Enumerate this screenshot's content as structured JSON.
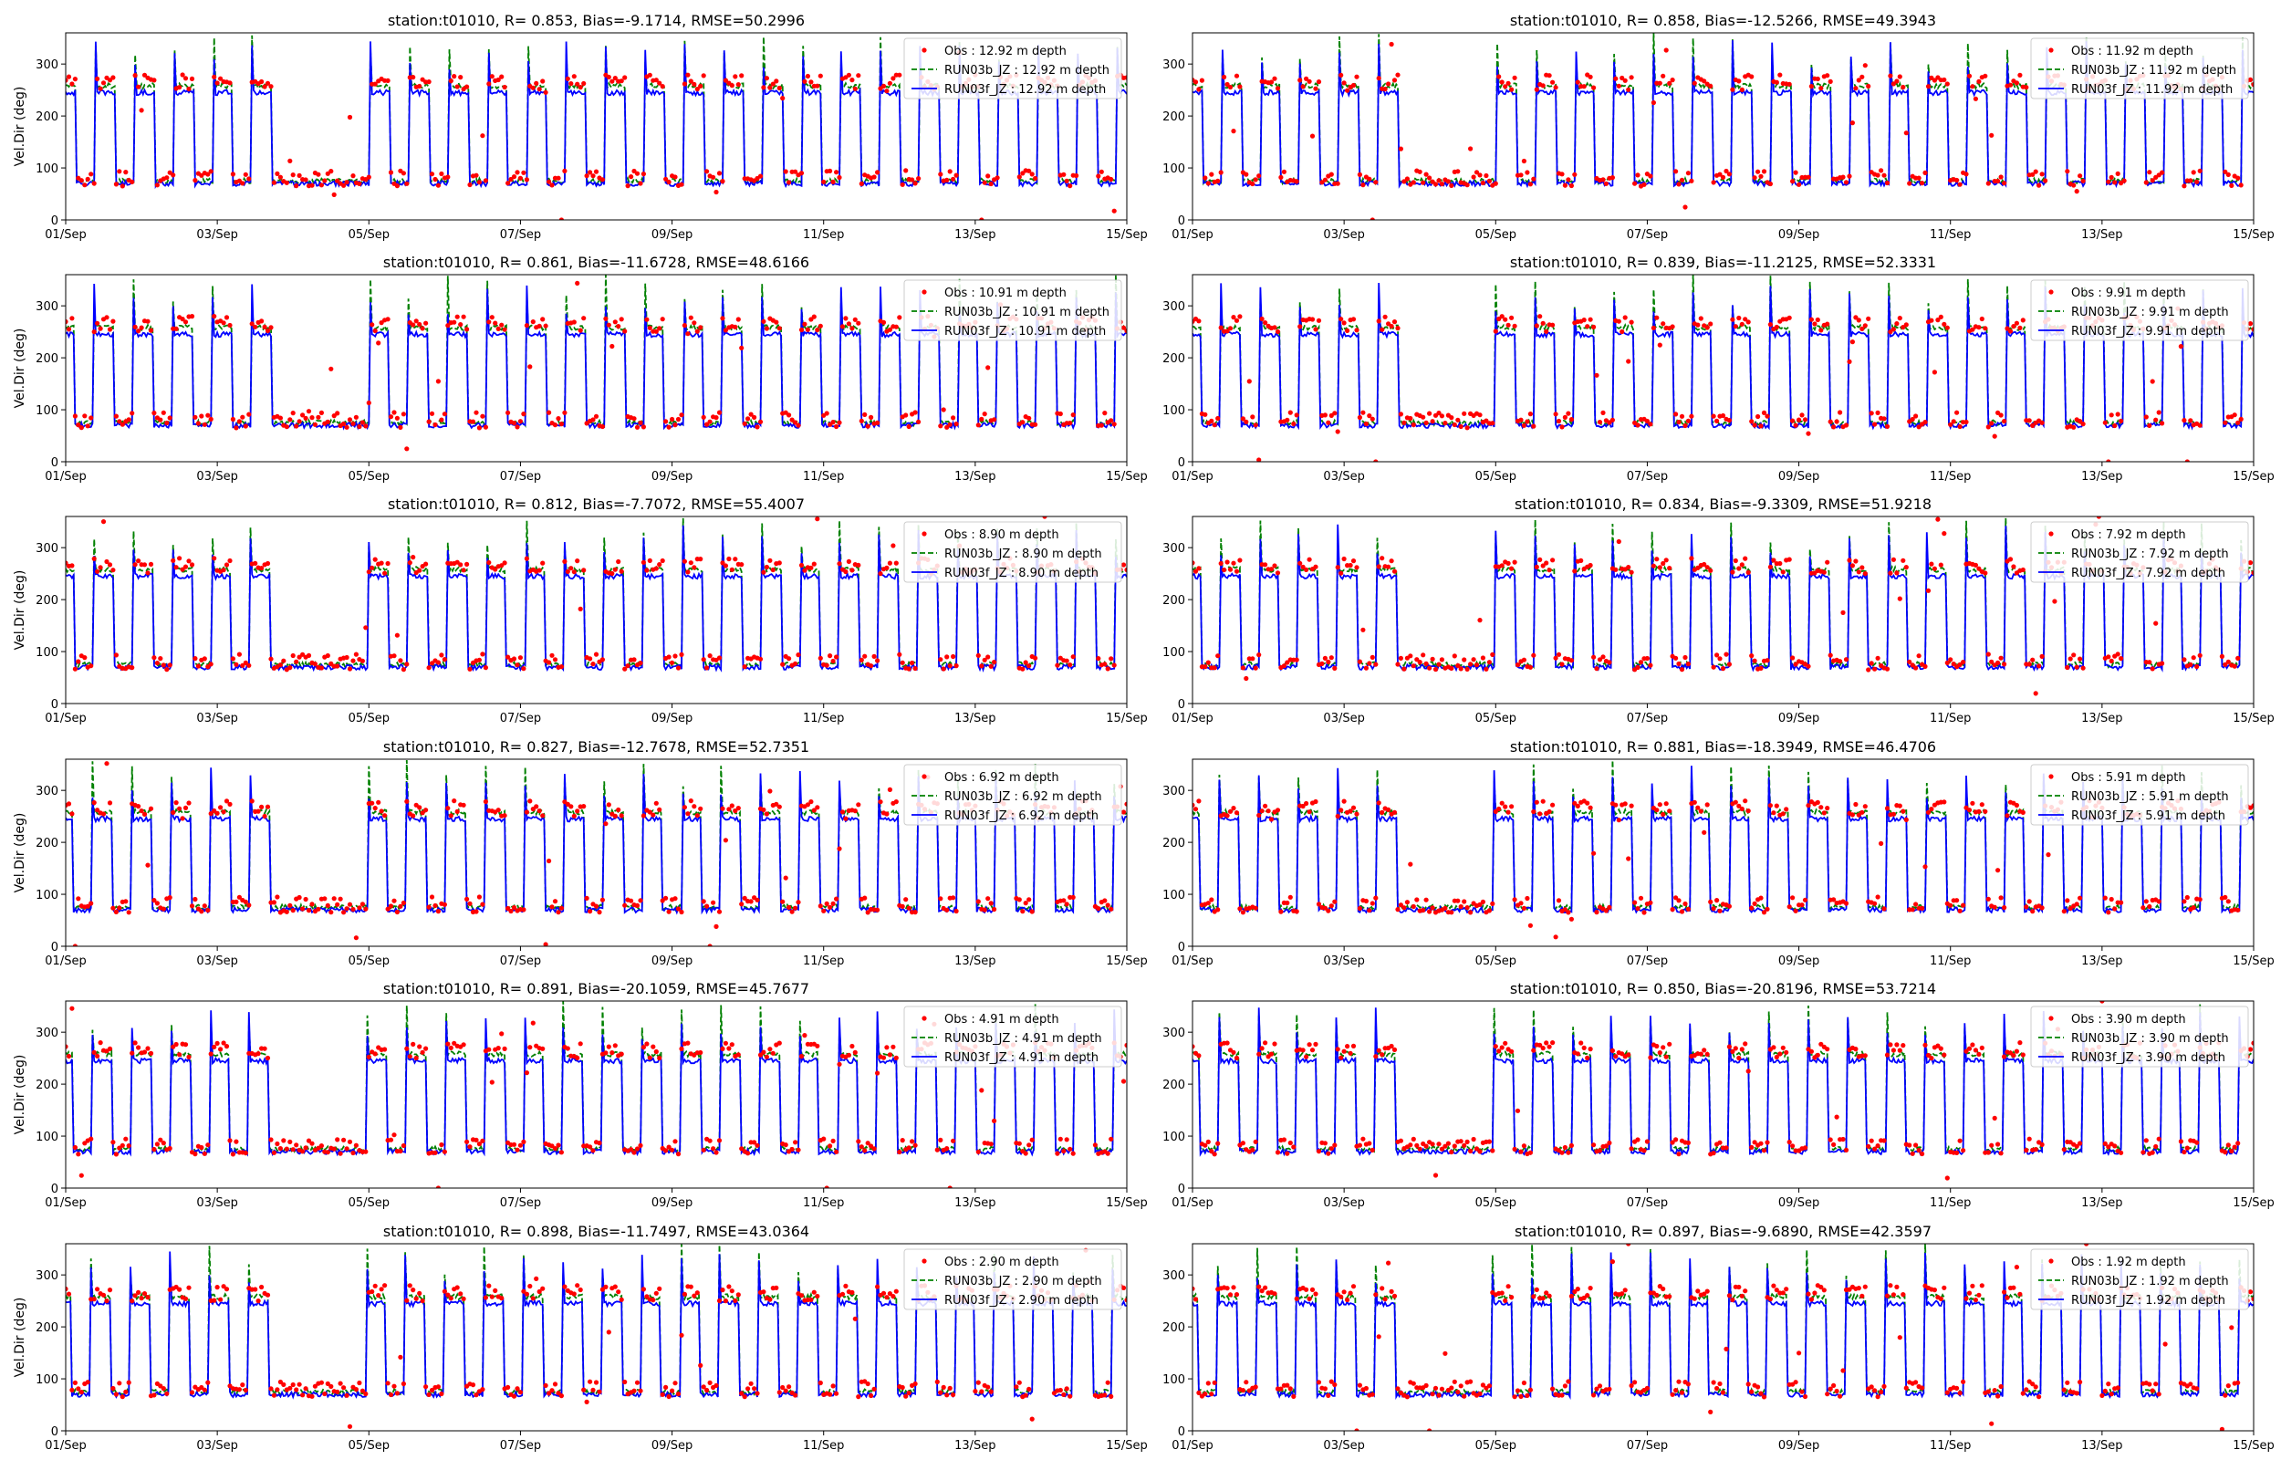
{
  "figure": {
    "background": "#ffffff"
  },
  "styles": {
    "obs_color": "#ff0000",
    "b_color": "#008000",
    "f_color": "#0000ff",
    "axis_color": "#000000"
  },
  "chart_data": [
    {
      "type": "line",
      "title": "station:t01010, R= 0.853, Bias=-9.1714, RMSE=50.2996",
      "xlabel": "",
      "ylabel": "Vel.Dir (deg)",
      "xlim": [
        "2023-09-01",
        "2023-09-15"
      ],
      "ylim": [
        0,
        360
      ],
      "xticks": [
        "01/Sep",
        "03/Sep",
        "05/Sep",
        "07/Sep",
        "09/Sep",
        "11/Sep",
        "13/Sep",
        "15/Sep"
      ],
      "yticks": [
        0,
        100,
        200,
        300
      ],
      "legend_position": "top-right",
      "depth": "12.92",
      "series": [
        {
          "name": "Obs : 12.92 m depth",
          "marker": "dot",
          "stats": {
            "low_mean": 80,
            "high_mean": 265
          }
        },
        {
          "name": "RUN03b_JZ : 12.92 m depth",
          "linestyle": "dashed",
          "stats": {
            "low_mean": 75,
            "high_mean": 258
          }
        },
        {
          "name": "RUN03f_JZ : 12.92 m depth",
          "linestyle": "solid",
          "stats": {
            "low_mean": 70,
            "high_mean": 245
          }
        }
      ]
    },
    {
      "type": "line",
      "title": "station:t01010, R= 0.858, Bias=-12.5266, RMSE=49.3943",
      "xlabel": "",
      "ylabel": "",
      "xlim": [
        "2023-09-01",
        "2023-09-15"
      ],
      "ylim": [
        0,
        360
      ],
      "xticks": [
        "01/Sep",
        "03/Sep",
        "05/Sep",
        "07/Sep",
        "09/Sep",
        "11/Sep",
        "13/Sep",
        "15/Sep"
      ],
      "yticks": [
        0,
        100,
        200,
        300
      ],
      "legend_position": "top-right",
      "depth": "11.92",
      "series": [
        {
          "name": "Obs : 11.92 m depth",
          "marker": "dot",
          "stats": {
            "low_mean": 80,
            "high_mean": 265
          }
        },
        {
          "name": "RUN03b_JZ : 11.92 m depth",
          "linestyle": "dashed",
          "stats": {
            "low_mean": 75,
            "high_mean": 258
          }
        },
        {
          "name": "RUN03f_JZ : 11.92 m depth",
          "linestyle": "solid",
          "stats": {
            "low_mean": 70,
            "high_mean": 245
          }
        }
      ]
    },
    {
      "type": "line",
      "title": "station:t01010, R= 0.861, Bias=-11.6728, RMSE=48.6166",
      "xlabel": "",
      "ylabel": "Vel.Dir (deg)",
      "xlim": [
        "2023-09-01",
        "2023-09-15"
      ],
      "ylim": [
        0,
        360
      ],
      "xticks": [
        "01/Sep",
        "03/Sep",
        "05/Sep",
        "07/Sep",
        "09/Sep",
        "11/Sep",
        "13/Sep",
        "15/Sep"
      ],
      "yticks": [
        0,
        100,
        200,
        300
      ],
      "legend_position": "top-right",
      "depth": "10.91",
      "series": [
        {
          "name": "Obs : 10.91 m depth",
          "marker": "dot",
          "stats": {
            "low_mean": 80,
            "high_mean": 265
          }
        },
        {
          "name": "RUN03b_JZ : 10.91 m depth",
          "linestyle": "dashed",
          "stats": {
            "low_mean": 75,
            "high_mean": 258
          }
        },
        {
          "name": "RUN03f_JZ : 10.91 m depth",
          "linestyle": "solid",
          "stats": {
            "low_mean": 70,
            "high_mean": 245
          }
        }
      ]
    },
    {
      "type": "line",
      "title": "station:t01010, R= 0.839, Bias=-11.2125, RMSE=52.3331",
      "xlabel": "",
      "ylabel": "",
      "xlim": [
        "2023-09-01",
        "2023-09-15"
      ],
      "ylim": [
        0,
        360
      ],
      "xticks": [
        "01/Sep",
        "03/Sep",
        "05/Sep",
        "07/Sep",
        "09/Sep",
        "11/Sep",
        "13/Sep",
        "15/Sep"
      ],
      "yticks": [
        0,
        100,
        200,
        300
      ],
      "legend_position": "top-right",
      "depth": "9.91",
      "series": [
        {
          "name": "Obs : 9.91 m depth",
          "marker": "dot",
          "stats": {
            "low_mean": 80,
            "high_mean": 265
          }
        },
        {
          "name": "RUN03b_JZ : 9.91 m depth",
          "linestyle": "dashed",
          "stats": {
            "low_mean": 75,
            "high_mean": 258
          }
        },
        {
          "name": "RUN03f_JZ : 9.91 m depth",
          "linestyle": "solid",
          "stats": {
            "low_mean": 70,
            "high_mean": 245
          }
        }
      ]
    },
    {
      "type": "line",
      "title": "station:t01010, R= 0.812, Bias=-7.7072, RMSE=55.4007",
      "xlabel": "",
      "ylabel": "Vel.Dir (deg)",
      "xlim": [
        "2023-09-01",
        "2023-09-15"
      ],
      "ylim": [
        0,
        360
      ],
      "xticks": [
        "01/Sep",
        "03/Sep",
        "05/Sep",
        "07/Sep",
        "09/Sep",
        "11/Sep",
        "13/Sep",
        "15/Sep"
      ],
      "yticks": [
        0,
        100,
        200,
        300
      ],
      "legend_position": "top-right",
      "depth": "8.90",
      "series": [
        {
          "name": "Obs : 8.90 m depth",
          "marker": "dot",
          "stats": {
            "low_mean": 80,
            "high_mean": 265
          }
        },
        {
          "name": "RUN03b_JZ : 8.90 m depth",
          "linestyle": "dashed",
          "stats": {
            "low_mean": 75,
            "high_mean": 258
          }
        },
        {
          "name": "RUN03f_JZ : 8.90 m depth",
          "linestyle": "solid",
          "stats": {
            "low_mean": 70,
            "high_mean": 245
          }
        }
      ]
    },
    {
      "type": "line",
      "title": "station:t01010, R= 0.834, Bias=-9.3309, RMSE=51.9218",
      "xlabel": "",
      "ylabel": "",
      "xlim": [
        "2023-09-01",
        "2023-09-15"
      ],
      "ylim": [
        0,
        360
      ],
      "xticks": [
        "01/Sep",
        "03/Sep",
        "05/Sep",
        "07/Sep",
        "09/Sep",
        "11/Sep",
        "13/Sep",
        "15/Sep"
      ],
      "yticks": [
        0,
        100,
        200,
        300
      ],
      "legend_position": "top-right",
      "depth": "7.92",
      "series": [
        {
          "name": "Obs : 7.92 m depth",
          "marker": "dot",
          "stats": {
            "low_mean": 80,
            "high_mean": 265
          }
        },
        {
          "name": "RUN03b_JZ : 7.92 m depth",
          "linestyle": "dashed",
          "stats": {
            "low_mean": 75,
            "high_mean": 258
          }
        },
        {
          "name": "RUN03f_JZ : 7.92 m depth",
          "linestyle": "solid",
          "stats": {
            "low_mean": 70,
            "high_mean": 245
          }
        }
      ]
    },
    {
      "type": "line",
      "title": "station:t01010, R= 0.827, Bias=-12.7678, RMSE=52.7351",
      "xlabel": "",
      "ylabel": "Vel.Dir (deg)",
      "xlim": [
        "2023-09-01",
        "2023-09-15"
      ],
      "ylim": [
        0,
        360
      ],
      "xticks": [
        "01/Sep",
        "03/Sep",
        "05/Sep",
        "07/Sep",
        "09/Sep",
        "11/Sep",
        "13/Sep",
        "15/Sep"
      ],
      "yticks": [
        0,
        100,
        200,
        300
      ],
      "legend_position": "top-right",
      "depth": "6.92",
      "series": [
        {
          "name": "Obs : 6.92 m depth",
          "marker": "dot",
          "stats": {
            "low_mean": 80,
            "high_mean": 265
          }
        },
        {
          "name": "RUN03b_JZ : 6.92 m depth",
          "linestyle": "dashed",
          "stats": {
            "low_mean": 75,
            "high_mean": 258
          }
        },
        {
          "name": "RUN03f_JZ : 6.92 m depth",
          "linestyle": "solid",
          "stats": {
            "low_mean": 70,
            "high_mean": 245
          }
        }
      ]
    },
    {
      "type": "line",
      "title": "station:t01010, R= 0.881, Bias=-18.3949, RMSE=46.4706",
      "xlabel": "",
      "ylabel": "",
      "xlim": [
        "2023-09-01",
        "2023-09-15"
      ],
      "ylim": [
        0,
        360
      ],
      "xticks": [
        "01/Sep",
        "03/Sep",
        "05/Sep",
        "07/Sep",
        "09/Sep",
        "11/Sep",
        "13/Sep",
        "15/Sep"
      ],
      "yticks": [
        0,
        100,
        200,
        300
      ],
      "legend_position": "top-right",
      "depth": "5.91",
      "series": [
        {
          "name": "Obs : 5.91 m depth",
          "marker": "dot",
          "stats": {
            "low_mean": 80,
            "high_mean": 265
          }
        },
        {
          "name": "RUN03b_JZ : 5.91 m depth",
          "linestyle": "dashed",
          "stats": {
            "low_mean": 75,
            "high_mean": 258
          }
        },
        {
          "name": "RUN03f_JZ : 5.91 m depth",
          "linestyle": "solid",
          "stats": {
            "low_mean": 70,
            "high_mean": 245
          }
        }
      ]
    },
    {
      "type": "line",
      "title": "station:t01010, R= 0.891, Bias=-20.1059, RMSE=45.7677",
      "xlabel": "",
      "ylabel": "Vel.Dir (deg)",
      "xlim": [
        "2023-09-01",
        "2023-09-15"
      ],
      "ylim": [
        0,
        360
      ],
      "xticks": [
        "01/Sep",
        "03/Sep",
        "05/Sep",
        "07/Sep",
        "09/Sep",
        "11/Sep",
        "13/Sep",
        "15/Sep"
      ],
      "yticks": [
        0,
        100,
        200,
        300
      ],
      "legend_position": "top-right",
      "depth": "4.91",
      "series": [
        {
          "name": "Obs : 4.91 m depth",
          "marker": "dot",
          "stats": {
            "low_mean": 80,
            "high_mean": 265
          }
        },
        {
          "name": "RUN03b_JZ : 4.91 m depth",
          "linestyle": "dashed",
          "stats": {
            "low_mean": 75,
            "high_mean": 258
          }
        },
        {
          "name": "RUN03f_JZ : 4.91 m depth",
          "linestyle": "solid",
          "stats": {
            "low_mean": 70,
            "high_mean": 245
          }
        }
      ]
    },
    {
      "type": "line",
      "title": "station:t01010, R= 0.850, Bias=-20.8196, RMSE=53.7214",
      "xlabel": "",
      "ylabel": "",
      "xlim": [
        "2023-09-01",
        "2023-09-15"
      ],
      "ylim": [
        0,
        360
      ],
      "xticks": [
        "01/Sep",
        "03/Sep",
        "05/Sep",
        "07/Sep",
        "09/Sep",
        "11/Sep",
        "13/Sep",
        "15/Sep"
      ],
      "yticks": [
        0,
        100,
        200,
        300
      ],
      "legend_position": "top-right",
      "depth": "3.90",
      "series": [
        {
          "name": "Obs : 3.90 m depth",
          "marker": "dot",
          "stats": {
            "low_mean": 80,
            "high_mean": 265
          }
        },
        {
          "name": "RUN03b_JZ : 3.90 m depth",
          "linestyle": "dashed",
          "stats": {
            "low_mean": 75,
            "high_mean": 258
          }
        },
        {
          "name": "RUN03f_JZ : 3.90 m depth",
          "linestyle": "solid",
          "stats": {
            "low_mean": 70,
            "high_mean": 245
          }
        }
      ]
    },
    {
      "type": "line",
      "title": "station:t01010, R= 0.898, Bias=-11.7497, RMSE=43.0364",
      "xlabel": "",
      "ylabel": "Vel.Dir (deg)",
      "xlim": [
        "2023-09-01",
        "2023-09-15"
      ],
      "ylim": [
        0,
        360
      ],
      "xticks": [
        "01/Sep",
        "03/Sep",
        "05/Sep",
        "07/Sep",
        "09/Sep",
        "11/Sep",
        "13/Sep",
        "15/Sep"
      ],
      "yticks": [
        0,
        100,
        200,
        300
      ],
      "legend_position": "top-right",
      "depth": "2.90",
      "series": [
        {
          "name": "Obs : 2.90 m depth",
          "marker": "dot",
          "stats": {
            "low_mean": 80,
            "high_mean": 265
          }
        },
        {
          "name": "RUN03b_JZ : 2.90 m depth",
          "linestyle": "dashed",
          "stats": {
            "low_mean": 75,
            "high_mean": 258
          }
        },
        {
          "name": "RUN03f_JZ : 2.90 m depth",
          "linestyle": "solid",
          "stats": {
            "low_mean": 70,
            "high_mean": 245
          }
        }
      ]
    },
    {
      "type": "line",
      "title": "station:t01010, R= 0.897, Bias=-9.6890, RMSE=42.3597",
      "xlabel": "",
      "ylabel": "",
      "xlim": [
        "2023-09-01",
        "2023-09-15"
      ],
      "ylim": [
        0,
        360
      ],
      "xticks": [
        "01/Sep",
        "03/Sep",
        "05/Sep",
        "07/Sep",
        "09/Sep",
        "11/Sep",
        "13/Sep",
        "15/Sep"
      ],
      "yticks": [
        0,
        100,
        200,
        300
      ],
      "legend_position": "top-right",
      "depth": "1.92",
      "series": [
        {
          "name": "Obs : 1.92 m depth",
          "marker": "dot",
          "stats": {
            "low_mean": 80,
            "high_mean": 265
          }
        },
        {
          "name": "RUN03b_JZ : 1.92 m depth",
          "linestyle": "dashed",
          "stats": {
            "low_mean": 75,
            "high_mean": 258
          }
        },
        {
          "name": "RUN03f_JZ : 1.92 m depth",
          "linestyle": "solid",
          "stats": {
            "low_mean": 70,
            "high_mean": 245
          }
        }
      ]
    }
  ]
}
